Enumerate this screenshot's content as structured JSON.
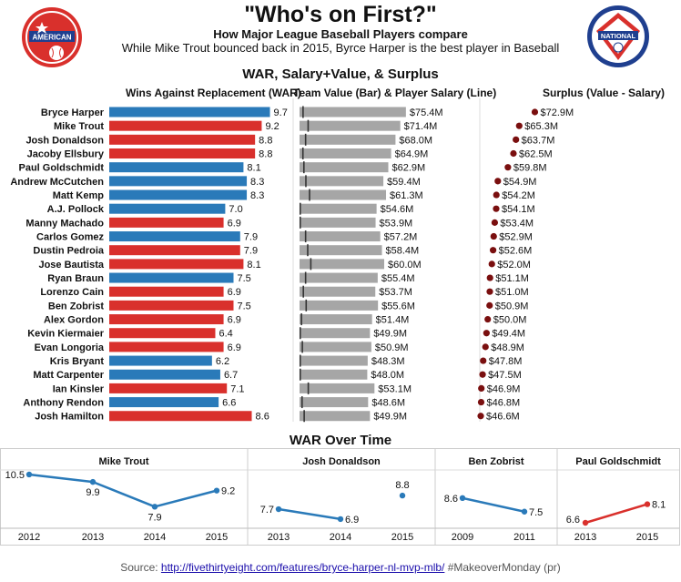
{
  "header": {
    "title": "\"Who's on First?\"",
    "subtitle": "How Major League Baseball Players compare",
    "description": "While Mike Trout bounced back in 2015, Byrce Harper is the best player in Baseball",
    "left_logo_text": "AMERICAN",
    "right_logo_text": "NATIONAL"
  },
  "section_titles": {
    "main": "WAR, Salary+Value, & Surplus",
    "over_time": "WAR Over Time"
  },
  "column_headers": {
    "war": "Wins Against Replacement (WAR)",
    "value": "Team Value (Bar) & Player Salary (Line)",
    "surplus": "Surplus (Value - Salary)"
  },
  "colors": {
    "national": "#2a7ab9",
    "american": "#d9302c",
    "value_bar": "#a6a6a6",
    "salary_line": "#333333",
    "surplus_dot": "#7a0f0f"
  },
  "chart_data": [
    {
      "type": "bar",
      "categories": [
        "Bryce Harper",
        "Mike Trout",
        "Josh Donaldson",
        "Jacoby Ellsbury",
        "Paul Goldschmidt",
        "Andrew McCutchen",
        "Matt Kemp",
        "A.J. Pollock",
        "Manny Machado",
        "Carlos Gomez",
        "Dustin Pedroia",
        "Jose Bautista",
        "Ryan Braun",
        "Lorenzo Cain",
        "Ben Zobrist",
        "Alex Gordon",
        "Kevin Kiermaier",
        "Evan Longoria",
        "Kris Bryant",
        "Matt Carpenter",
        "Ian Kinsler",
        "Anthony Rendon",
        "Josh Hamilton"
      ],
      "league": [
        "NL",
        "AL",
        "AL",
        "AL",
        "NL",
        "NL",
        "NL",
        "NL",
        "AL",
        "NL",
        "AL",
        "AL",
        "NL",
        "AL",
        "AL",
        "AL",
        "AL",
        "AL",
        "NL",
        "NL",
        "AL",
        "NL",
        "AL"
      ],
      "war": [
        9.7,
        9.2,
        8.8,
        8.8,
        8.1,
        8.3,
        8.3,
        7.0,
        6.9,
        7.9,
        7.9,
        8.1,
        7.5,
        6.9,
        7.5,
        6.9,
        6.4,
        6.9,
        6.2,
        6.7,
        7.1,
        6.6,
        8.6
      ],
      "war_labels": [
        "9.7",
        "9.2",
        "8.8",
        "8.8",
        "8.1",
        "8.3",
        "8.3",
        "7.0",
        "6.9",
        "7.9",
        "7.9",
        "8.1",
        "7.5",
        "6.9",
        "7.5",
        "6.9",
        "6.4",
        "6.9",
        "6.2",
        "6.7",
        "7.1",
        "6.6",
        "8.6"
      ],
      "value": [
        75.4,
        71.4,
        68.0,
        64.9,
        62.9,
        59.4,
        61.3,
        54.6,
        53.9,
        57.2,
        58.4,
        60.0,
        55.4,
        53.7,
        55.6,
        51.4,
        49.9,
        50.9,
        48.3,
        48.0,
        53.1,
        48.6,
        49.9
      ],
      "value_labels": [
        "$75.4M",
        "$71.4M",
        "$68.0M",
        "$64.9M",
        "$62.9M",
        "$59.4M",
        "$61.3M",
        "$54.6M",
        "$53.9M",
        "$57.2M",
        "$58.4M",
        "$60.0M",
        "$55.4M",
        "$53.7M",
        "$55.6M",
        "$51.4M",
        "$49.9M",
        "$50.9M",
        "$48.3M",
        "$48.0M",
        "$53.1M",
        "$48.6M",
        "$49.9M"
      ],
      "salary": [
        2.5,
        6.1,
        4.3,
        2.4,
        3.1,
        4.5,
        7.1,
        0.5,
        0.5,
        4.3,
        5.8,
        8.0,
        4.3,
        2.7,
        4.7,
        1.4,
        0.5,
        2.0,
        0.5,
        0.5,
        6.2,
        1.8,
        3.3
      ],
      "surplus": [
        72.9,
        65.3,
        63.7,
        62.5,
        59.8,
        54.9,
        54.2,
        54.1,
        53.4,
        52.9,
        52.6,
        52.0,
        51.1,
        51.0,
        50.9,
        50.0,
        49.4,
        48.9,
        47.8,
        47.5,
        46.9,
        46.8,
        46.6
      ],
      "surplus_labels": [
        "$72.9M",
        "$65.3M",
        "$63.7M",
        "$62.5M",
        "$59.8M",
        "$54.9M",
        "$54.2M",
        "$54.1M",
        "$53.4M",
        "$52.9M",
        "$52.6M",
        "$52.0M",
        "$51.1M",
        "$51.0M",
        "$50.9M",
        "$50.0M",
        "$49.4M",
        "$48.9M",
        "$47.8M",
        "$47.5M",
        "$46.9M",
        "$46.8M",
        "$46.6M"
      ]
    },
    {
      "type": "line",
      "name": "Mike Trout",
      "x": [
        "2012",
        "2013",
        "2014",
        "2015"
      ],
      "values": [
        10.5,
        9.9,
        7.9,
        9.2
      ],
      "labels": [
        "10.5",
        "9.9",
        "7.9",
        "9.2"
      ],
      "color": "#2a7ab9"
    },
    {
      "type": "line",
      "name": "Josh Donaldson",
      "x": [
        "2013",
        "2014",
        "2015"
      ],
      "values": [
        7.7,
        6.9,
        8.8
      ],
      "labels": [
        "7.7",
        "6.9",
        "8.8"
      ],
      "color": "#2a7ab9"
    },
    {
      "type": "line",
      "name": "Ben Zobrist",
      "x": [
        "2009",
        "2011"
      ],
      "values": [
        8.6,
        7.5
      ],
      "labels": [
        "8.6",
        "7.5"
      ],
      "color": "#2a7ab9"
    },
    {
      "type": "line",
      "name": "Paul Goldschmidt",
      "x": [
        "2013",
        "2015"
      ],
      "values": [
        6.6,
        8.1
      ],
      "labels": [
        "6.6",
        "8.1"
      ],
      "color": "#d9302c"
    }
  ],
  "source": {
    "prefix": "Source: ",
    "link": "http://fivethirtyeight.com/features/bryce-harper-nl-mvp-mlb/",
    "suffix": " #MakeoverMonday (pr)"
  }
}
